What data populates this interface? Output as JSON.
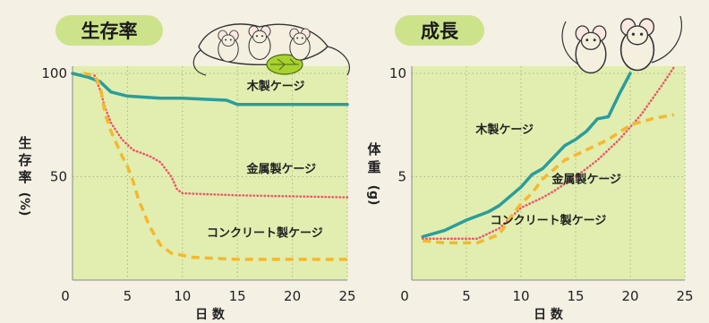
{
  "chart_data": [
    {
      "type": "line",
      "title": "生存率",
      "xlabel": "日 数",
      "ylabel_chars": [
        "生",
        "存",
        "率",
        "(%)"
      ],
      "xlim": [
        0,
        25
      ],
      "ylim": [
        0,
        100
      ],
      "xticks": [
        "0",
        "5",
        "10",
        "15",
        "20",
        "25"
      ],
      "yticks": [
        "100",
        "50"
      ],
      "grid": true,
      "series": [
        {
          "name": "木製ケージ",
          "color": "#2a9d9b",
          "style": "solid",
          "label_at": [
            18.5,
            92
          ],
          "points": [
            [
              0,
              100
            ],
            [
              1.5,
              98
            ],
            [
              2.5,
              96
            ],
            [
              3.5,
              91
            ],
            [
              5,
              89
            ],
            [
              8,
              88
            ],
            [
              10,
              88
            ],
            [
              12,
              87.5
            ],
            [
              14,
              87
            ],
            [
              15,
              85
            ],
            [
              18,
              85
            ],
            [
              22,
              85
            ],
            [
              25,
              85
            ]
          ]
        },
        {
          "name": "金属製ケージ",
          "color": "#f0546a",
          "style": "dotted",
          "label_at": [
            19,
            52
          ],
          "points": [
            [
              2,
              99
            ],
            [
              2.5,
              92
            ],
            [
              3,
              83
            ],
            [
              3.5,
              76
            ],
            [
              4.5,
              68
            ],
            [
              5.5,
              63
            ],
            [
              7,
              60
            ],
            [
              8,
              57
            ],
            [
              9,
              50
            ],
            [
              9.5,
              44
            ],
            [
              10,
              42
            ],
            [
              15,
              41
            ],
            [
              20,
              40.5
            ],
            [
              25,
              40
            ]
          ]
        },
        {
          "name": "コンクリート製ケージ",
          "color": "#f5b82e",
          "style": "dashed",
          "label_at": [
            17.5,
            21
          ],
          "points": [
            [
              1,
              100
            ],
            [
              2,
              99
            ],
            [
              2.5,
              94
            ],
            [
              3,
              80
            ],
            [
              3.5,
              72
            ],
            [
              4.5,
              60
            ],
            [
              5,
              55
            ],
            [
              5.5,
              48
            ],
            [
              6,
              39
            ],
            [
              7,
              26
            ],
            [
              8,
              17
            ],
            [
              9,
              13
            ],
            [
              10,
              12
            ],
            [
              11,
              11
            ],
            [
              15,
              10
            ],
            [
              20,
              10
            ],
            [
              25,
              10
            ]
          ]
        }
      ]
    },
    {
      "type": "line",
      "title": "成長",
      "xlabel": "日 数",
      "ylabel_chars": [
        "体",
        "重",
        "(g)"
      ],
      "xlim": [
        0,
        25
      ],
      "ylim": [
        0,
        10
      ],
      "xticks": [
        "0",
        "5",
        "10",
        "15",
        "20",
        "25"
      ],
      "yticks": [
        "10",
        "5"
      ],
      "grid": true,
      "series": [
        {
          "name": "木製ケージ",
          "color": "#2a9d9b",
          "style": "solid",
          "label_at": [
            8.5,
            7.1
          ],
          "points": [
            [
              1,
              2.1
            ],
            [
              3,
              2.4
            ],
            [
              5,
              2.9
            ],
            [
              7,
              3.3
            ],
            [
              8,
              3.6
            ],
            [
              10,
              4.5
            ],
            [
              11,
              5.1
            ],
            [
              12,
              5.4
            ],
            [
              14,
              6.5
            ],
            [
              15,
              6.8
            ],
            [
              16,
              7.2
            ],
            [
              17,
              7.8
            ],
            [
              18,
              7.9
            ],
            [
              19,
              9
            ],
            [
              20,
              10
            ]
          ]
        },
        {
          "name": "金属製ケージ",
          "color": "#f0546a",
          "style": "dotted",
          "label_at": [
            16,
            4.7
          ],
          "points": [
            [
              1,
              2
            ],
            [
              3,
              2
            ],
            [
              6,
              2
            ],
            [
              8,
              2.5
            ],
            [
              10,
              3.5
            ],
            [
              12,
              4
            ],
            [
              13,
              4.3
            ],
            [
              15,
              5
            ],
            [
              17,
              5.8
            ],
            [
              19,
              6.8
            ],
            [
              21,
              8
            ],
            [
              23,
              9.5
            ],
            [
              24,
              10.3
            ]
          ]
        },
        {
          "name": "コンクリート製ケージ",
          "color": "#f5b82e",
          "style": "dashed",
          "label_at": [
            12.5,
            2.7
          ],
          "points": [
            [
              1,
              1.9
            ],
            [
              3,
              1.8
            ],
            [
              6,
              1.8
            ],
            [
              8,
              2.2
            ],
            [
              9,
              3
            ],
            [
              10,
              3.7
            ],
            [
              11,
              4.2
            ],
            [
              12,
              4.9
            ],
            [
              14,
              5.8
            ],
            [
              16,
              6.3
            ],
            [
              18,
              6.8
            ],
            [
              20,
              7.5
            ],
            [
              22,
              7.8
            ],
            [
              24,
              8
            ]
          ]
        }
      ]
    }
  ]
}
